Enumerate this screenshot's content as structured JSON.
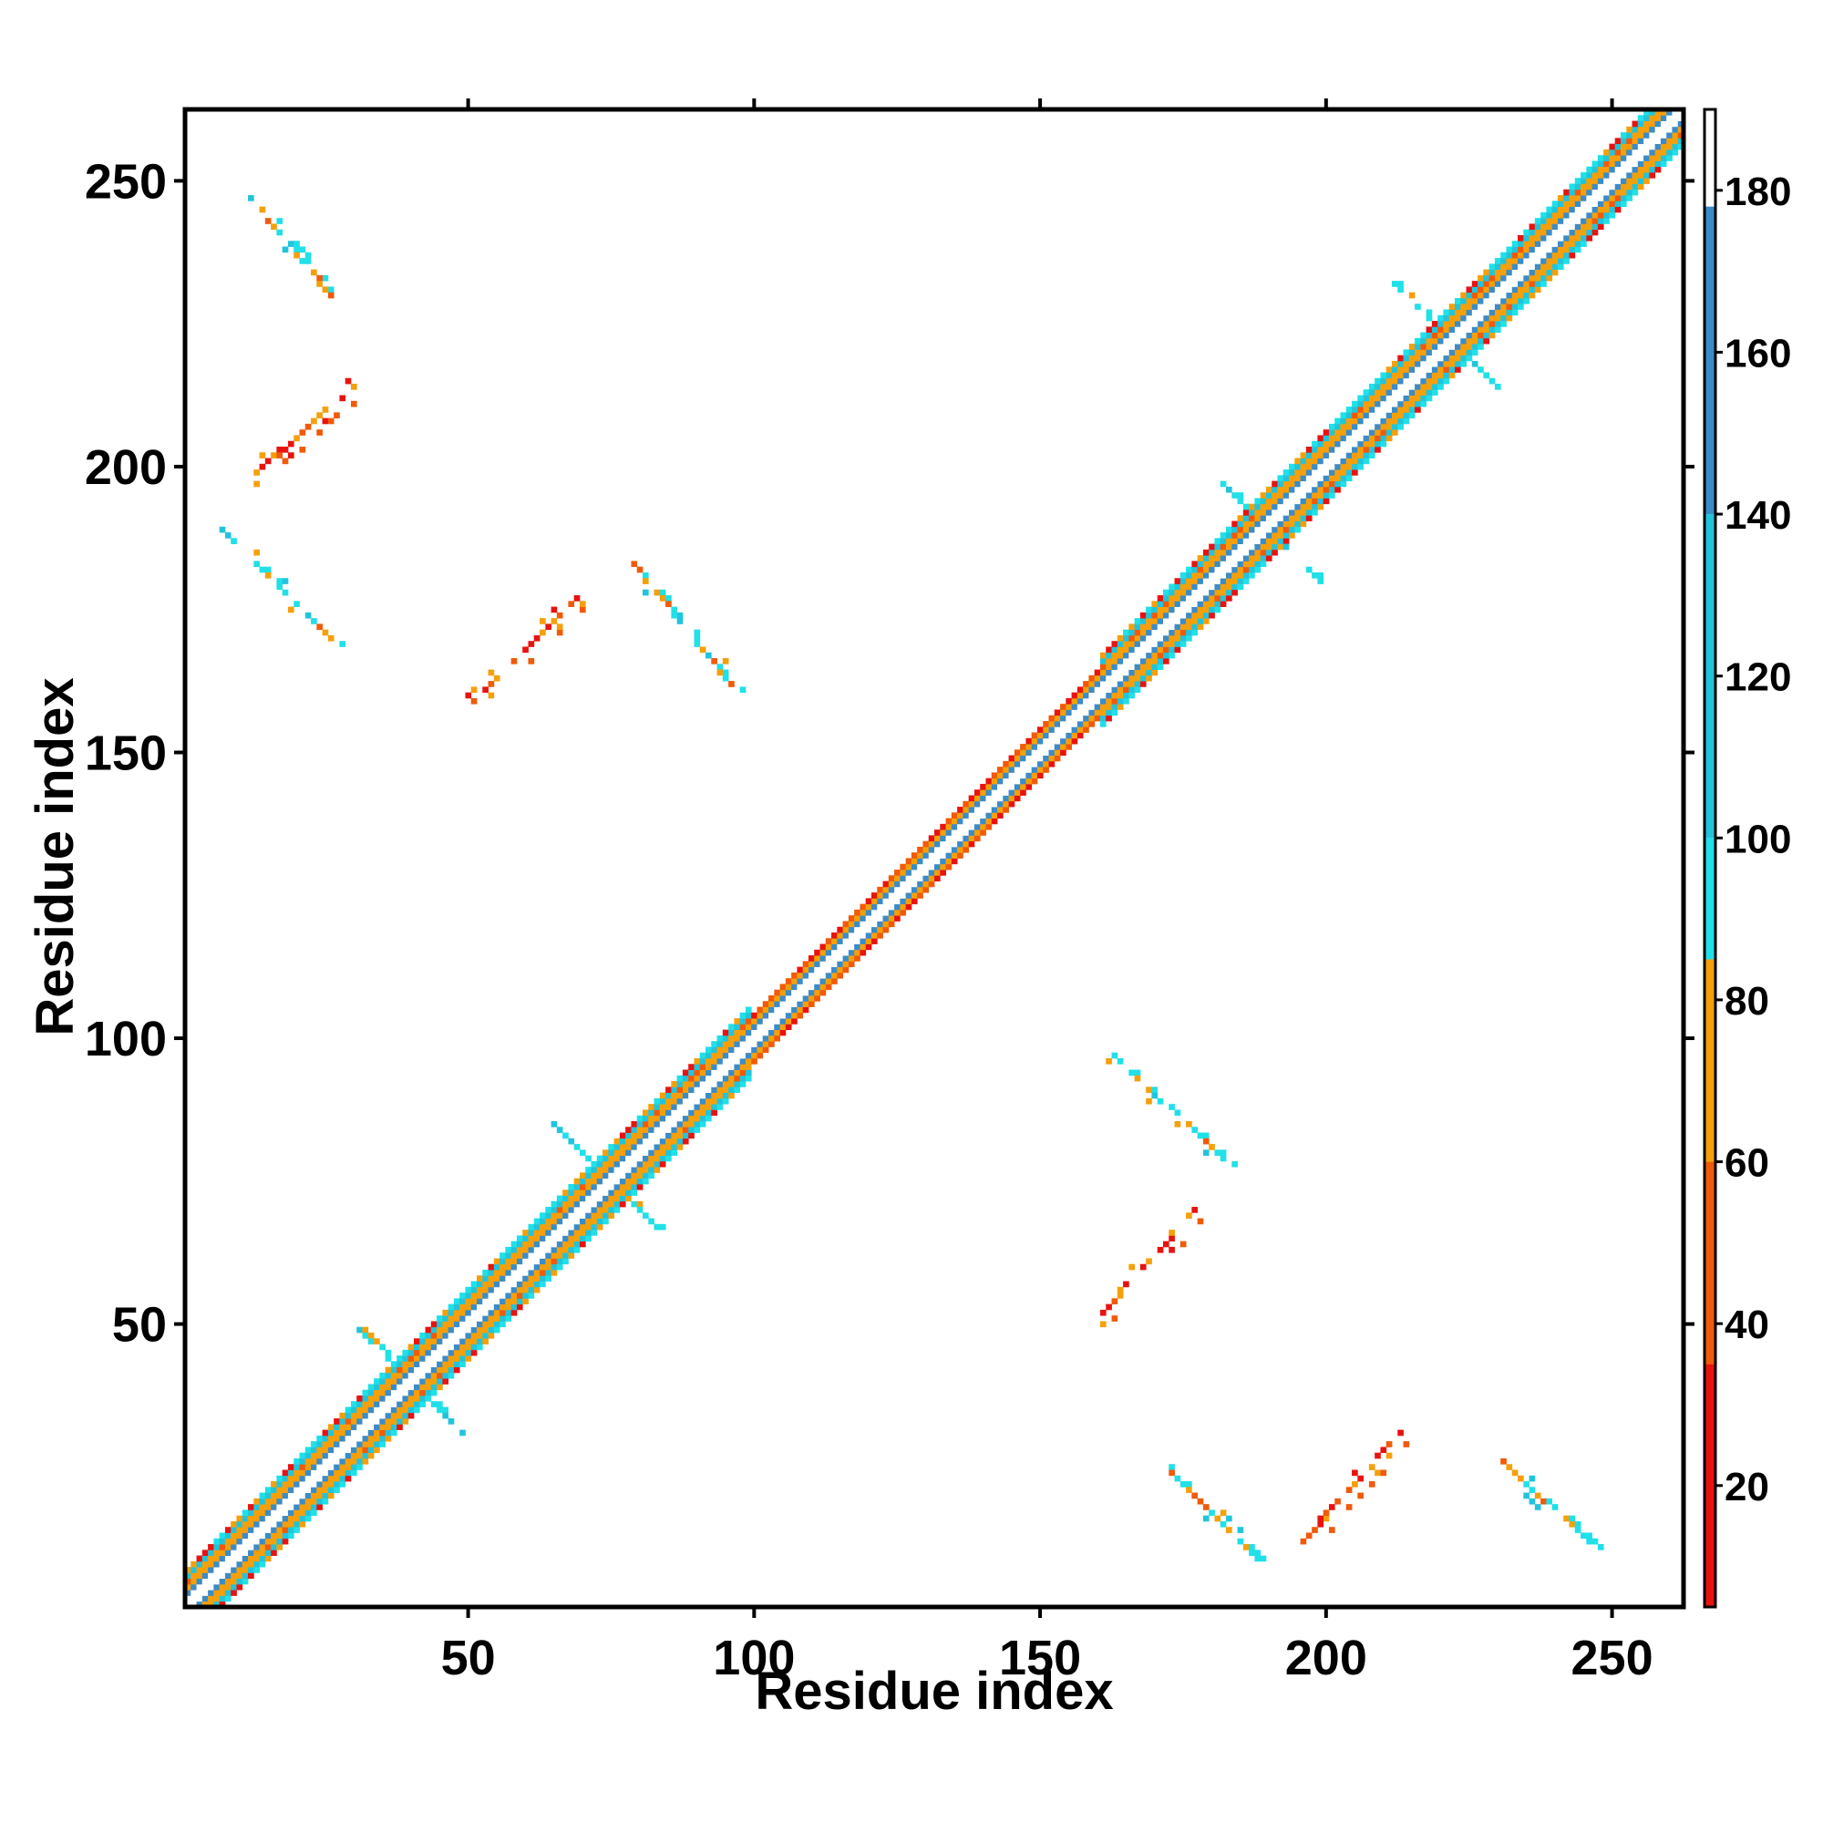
{
  "chart_data": {
    "type": "heatmap",
    "xlabel": "Residue index",
    "ylabel": "Residue index",
    "xlim": [
      1,
      262
    ],
    "ylim": [
      1,
      262
    ],
    "xticks": [
      50,
      100,
      150,
      200,
      250
    ],
    "yticks": [
      50,
      100,
      150,
      200,
      250
    ],
    "grid": false,
    "colorbar": {
      "range": [
        5,
        190
      ],
      "ticks": [
        20,
        40,
        60,
        80,
        100,
        120,
        140,
        160,
        180
      ],
      "colors": [
        {
          "from": 5,
          "to": 35,
          "color": "#e8130f"
        },
        {
          "from": 35,
          "to": 60,
          "color": "#f05a0a"
        },
        {
          "from": 60,
          "to": 85,
          "color": "#f5a00a"
        },
        {
          "from": 85,
          "to": 100,
          "color": "#20e0e8"
        },
        {
          "from": 100,
          "to": 140,
          "color": "#22c4dc"
        },
        {
          "from": 140,
          "to": 178,
          "color": "#3a8cc8"
        },
        {
          "from": 178,
          "to": 190,
          "color": "#ffffff"
        }
      ]
    },
    "diagonal_band": {
      "from": 1,
      "to": 262,
      "halfwidth": 6
    },
    "off_diagonal_contacts": [
      {
        "x1": 13,
        "y1": 246,
        "x2": 26,
        "y2": 230,
        "kind": "antiparallel"
      },
      {
        "x1": 12,
        "y1": 198,
        "x2": 30,
        "y2": 214,
        "kind": "parallel"
      },
      {
        "x1": 8,
        "y1": 188,
        "x2": 26,
        "y2": 170,
        "kind": "antiparallel"
      },
      {
        "x1": 51,
        "y1": 159,
        "x2": 70,
        "y2": 178,
        "kind": "parallel"
      },
      {
        "x1": 79,
        "y1": 183,
        "x2": 97,
        "y2": 161,
        "kind": "antiparallel"
      },
      {
        "x1": 163,
        "y1": 97,
        "x2": 182,
        "y2": 79,
        "kind": "antiparallel"
      },
      {
        "x1": 160,
        "y1": 51,
        "x2": 177,
        "y2": 70,
        "kind": "parallel"
      },
      {
        "x1": 171,
        "y1": 26,
        "x2": 188,
        "y2": 9,
        "kind": "antiparallel"
      },
      {
        "x1": 196,
        "y1": 12,
        "x2": 213,
        "y2": 31,
        "kind": "parallel"
      },
      {
        "x1": 231,
        "y1": 26,
        "x2": 246,
        "y2": 12,
        "kind": "antiparallel"
      }
    ],
    "crosses": [
      {
        "x": 40,
        "y": 40
      },
      {
        "x": 74,
        "y": 76
      },
      {
        "x": 191,
        "y": 188
      },
      {
        "x": 221,
        "y": 223
      }
    ]
  }
}
